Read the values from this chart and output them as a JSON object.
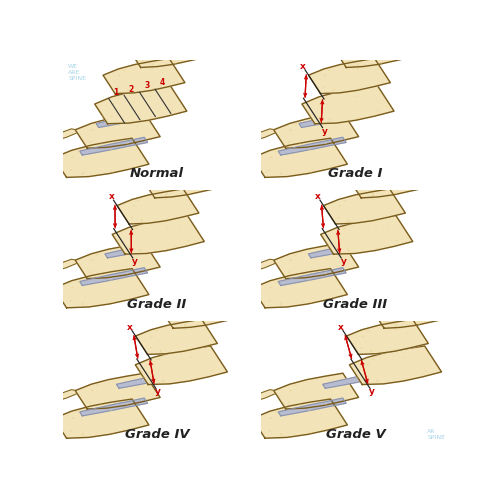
{
  "background_color": "#ffffff",
  "bone_fill": "#f2e4b8",
  "bone_fill2": "#e8d090",
  "bone_edge": "#7a5c1e",
  "bone_shadow": "#c8a84a",
  "disc_color": "#b8bcd0",
  "disc_edge": "#8890a8",
  "red_color": "#cc0000",
  "label_color": "#222222",
  "watermark_color": "#a8d4e8",
  "panels": [
    {
      "label": "Normal",
      "col": 0,
      "row": 0,
      "slip": 0.0
    },
    {
      "label": "Grade I",
      "col": 1,
      "row": 0,
      "slip": 0.14
    },
    {
      "label": "Grade II",
      "col": 0,
      "row": 1,
      "slip": 0.28
    },
    {
      "label": "Grade III",
      "col": 1,
      "row": 1,
      "slip": 0.44
    },
    {
      "label": "Grade IV",
      "col": 0,
      "row": 2,
      "slip": 0.65
    },
    {
      "label": "Grade V",
      "col": 1,
      "row": 2,
      "slip": 0.9
    }
  ]
}
